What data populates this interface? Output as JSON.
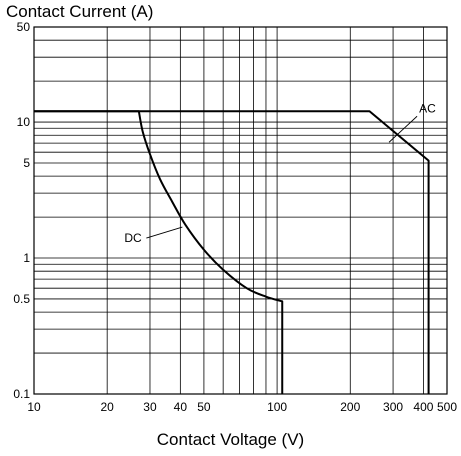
{
  "chart_data": {
    "type": "line",
    "title": "Contact Current (A)",
    "xlabel": "Contact Voltage (V)",
    "ylabel": "Contact Current (A)",
    "x_scale": "log",
    "y_scale": "log",
    "xlim": [
      10,
      500
    ],
    "ylim": [
      0.1,
      50
    ],
    "grid": true,
    "x_ticks": [
      10,
      20,
      30,
      40,
      50,
      100,
      200,
      300,
      400,
      500
    ],
    "x_tick_labels": [
      "10",
      "20",
      "30",
      "40",
      "50",
      "100",
      "200",
      "300",
      "400",
      "500"
    ],
    "y_ticks": [
      0.1,
      0.5,
      1,
      5,
      10,
      50
    ],
    "y_tick_labels": [
      "0.1",
      "0.5",
      "1",
      "5",
      "10",
      "50"
    ],
    "x_grid": [
      10,
      20,
      30,
      40,
      50,
      60,
      70,
      80,
      90,
      100,
      200,
      300,
      400,
      500
    ],
    "y_grid": [
      0.1,
      0.2,
      0.3,
      0.4,
      0.5,
      0.6,
      0.7,
      0.8,
      0.9,
      1,
      2,
      3,
      4,
      5,
      6,
      7,
      8,
      9,
      10,
      20,
      30,
      40,
      50
    ],
    "series": [
      {
        "name": "AC",
        "x": [
          10,
          240,
          420,
          420
        ],
        "y": [
          12,
          12,
          5.2,
          0.1
        ]
      },
      {
        "name": "DC",
        "x": [
          10,
          27,
          28,
          30,
          33,
          37,
          42,
          50,
          60,
          75,
          90,
          105,
          105
        ],
        "y": [
          12,
          12,
          8.5,
          5.8,
          3.8,
          2.6,
          1.75,
          1.15,
          0.82,
          0.6,
          0.52,
          0.48,
          0.1
        ]
      }
    ],
    "annotations": [
      {
        "text": "AC",
        "series": "AC",
        "x": 300,
        "y": 9
      },
      {
        "text": "DC",
        "series": "DC",
        "x": 40,
        "y": 2
      }
    ]
  }
}
